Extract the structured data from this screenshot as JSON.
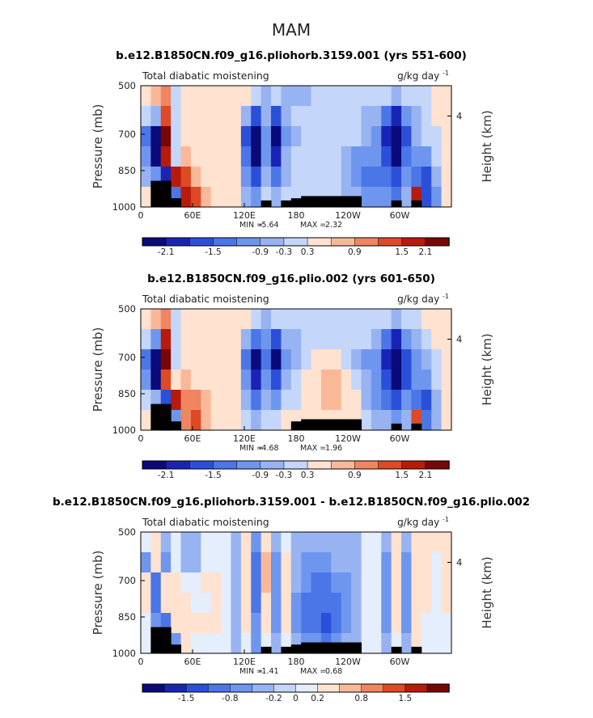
{
  "figure": {
    "main_title": "MAM"
  },
  "colors": {
    "palette_12": [
      "#0a0a7a",
      "#1a24b4",
      "#2b4fd8",
      "#4a76e8",
      "#6f96ee",
      "#97b3f2",
      "#c4d6fa",
      "#ffe2d0",
      "#f9b999",
      "#ef8561",
      "#de4a25",
      "#b81b0b",
      "#7a0505"
    ],
    "palette_diff": [
      "#0a0a7a",
      "#1a24b4",
      "#2b4fd8",
      "#4a76e8",
      "#6f96ee",
      "#97b3f2",
      "#c4d6fa",
      "#e4eefc",
      "#ffe2d0",
      "#f9b999",
      "#ef8561",
      "#de4a25",
      "#b81b0b",
      "#7a0505"
    ],
    "terrain": "#000000"
  },
  "chart_data": [
    {
      "type": "heatmap",
      "title": "b.e12.B1850CN.f09_g16.pliohorb.3159.001 (yrs 551-600)",
      "left_label": "Total diabatic moistening",
      "units": "g/kg day",
      "units_exp": "-1",
      "ylabel": "Pressure (mb)",
      "ylabel_right": "Height (km)",
      "yticks": [
        "500",
        "700",
        "850",
        "1000"
      ],
      "ytick_values": [
        500,
        700,
        850,
        1000
      ],
      "yticks_right": [
        "4"
      ],
      "xticks": [
        "0",
        "60E",
        "120E",
        "180",
        "120W",
        "60W"
      ],
      "xtick_values": [
        0,
        60,
        120,
        180,
        240,
        300
      ],
      "xlim": [
        0,
        360
      ],
      "ylim": [
        1000,
        500
      ],
      "min_label": "MIN =",
      "min_value": "-5.64",
      "max_label": "MAX =",
      "max_value": "2.32",
      "colorbar_labels": [
        "-2.1",
        "-1.5",
        "-0.9",
        "-0.3",
        "0.3",
        "0.9",
        "1.5",
        "2.1"
      ],
      "colorbar_levels": [
        -2.4,
        -2.1,
        -1.8,
        -1.5,
        -1.2,
        -0.9,
        -0.6,
        -0.3,
        0.3,
        0.6,
        0.9,
        1.2,
        1.5,
        1.8,
        2.1,
        2.4
      ],
      "field": [
        [
          0.3,
          0.5,
          0.9,
          -0.3,
          0.3,
          0.3,
          0.3,
          0.3,
          0.3,
          0.3,
          0.3,
          -0.3,
          -0.6,
          -0.3,
          -0.6,
          -0.6,
          -0.6,
          -0.3,
          -0.3,
          -0.3,
          -0.3,
          -0.3,
          -0.3,
          -0.3,
          -0.3,
          -0.6,
          -0.3,
          -0.3,
          -0.3,
          0.3,
          0.3
        ],
        [
          -0.3,
          -0.6,
          1.2,
          -0.3,
          0.3,
          0.3,
          0.3,
          0.3,
          0.3,
          0.3,
          -0.6,
          -1.5,
          -0.6,
          -1.5,
          -0.6,
          -0.3,
          -0.3,
          -0.3,
          -0.3,
          -0.3,
          -0.3,
          -0.3,
          -0.6,
          -0.6,
          -1.2,
          -1.8,
          -0.9,
          -0.6,
          -0.3,
          0.3,
          0.3
        ],
        [
          -1.2,
          -2.4,
          1.8,
          -0.3,
          0.3,
          0.3,
          0.3,
          0.3,
          0.3,
          0.3,
          -1.5,
          -2.4,
          -0.9,
          -2.1,
          -0.9,
          -0.6,
          -0.3,
          -0.3,
          -0.3,
          -0.3,
          -0.3,
          -0.3,
          -0.6,
          -0.9,
          -1.8,
          -2.4,
          -1.5,
          -0.6,
          -0.3,
          -0.3,
          0.3
        ],
        [
          -0.9,
          -2.1,
          1.5,
          -0.3,
          0.6,
          0.3,
          0.3,
          0.3,
          0.3,
          0.3,
          -1.2,
          -2.1,
          -0.9,
          -1.8,
          -0.6,
          -0.3,
          -0.3,
          -0.3,
          -0.3,
          -0.3,
          -0.6,
          -0.9,
          -0.9,
          -0.9,
          -1.5,
          -2.1,
          -1.2,
          -0.9,
          -0.9,
          -0.3,
          0.3
        ],
        [
          -0.6,
          -0.9,
          -1.8,
          1.5,
          1.2,
          0.6,
          0.3,
          0.3,
          0.3,
          0.3,
          -0.9,
          -1.5,
          -0.6,
          -1.2,
          -0.6,
          -0.3,
          -0.3,
          -0.3,
          -0.3,
          -0.3,
          -0.6,
          -0.9,
          -1.2,
          -1.2,
          -1.2,
          -1.5,
          -0.9,
          -1.2,
          -1.5,
          -0.6,
          0.3
        ],
        [
          0.3,
          0.9,
          -2.4,
          -1.2,
          1.5,
          1.2,
          0.6,
          0.3,
          0.3,
          0.3,
          -0.6,
          -0.9,
          -0.3,
          -0.6,
          -0.3,
          -0.3,
          -0.3,
          -0.3,
          -0.3,
          -0.3,
          -0.6,
          -0.6,
          -0.9,
          -0.9,
          -0.9,
          -1.2,
          -0.6,
          1.5,
          -1.5,
          -0.9,
          0.3
        ]
      ],
      "terrain": [
        0,
        24,
        24,
        8,
        0,
        0,
        0,
        0,
        0,
        0,
        0,
        0,
        6,
        0,
        6,
        8,
        10,
        10,
        10,
        10,
        10,
        10,
        0,
        0,
        0,
        6,
        0,
        6,
        0,
        0,
        0
      ]
    },
    {
      "type": "heatmap",
      "title": "b.e12.B1850CN.f09_g16.plio.002 (yrs 601-650)",
      "left_label": "Total diabatic moistening",
      "units": "g/kg day",
      "units_exp": "-1",
      "ylabel": "Pressure (mb)",
      "ylabel_right": "Height (km)",
      "yticks": [
        "500",
        "700",
        "850",
        "1000"
      ],
      "ytick_values": [
        500,
        700,
        850,
        1000
      ],
      "yticks_right": [
        "4"
      ],
      "xticks": [
        "0",
        "60E",
        "120E",
        "180",
        "120W",
        "60W"
      ],
      "xtick_values": [
        0,
        60,
        120,
        180,
        240,
        300
      ],
      "xlim": [
        0,
        360
      ],
      "ylim": [
        1000,
        500
      ],
      "min_label": "MIN =",
      "min_value": "-4.68",
      "max_label": "MAX =",
      "max_value": "1.96",
      "colorbar_labels": [
        "-2.1",
        "-1.5",
        "-0.9",
        "-0.3",
        "0.3",
        "0.9",
        "1.5",
        "2.1"
      ],
      "colorbar_levels": [
        -2.4,
        -2.1,
        -1.8,
        -1.5,
        -1.2,
        -0.9,
        -0.6,
        -0.3,
        0.3,
        0.6,
        0.9,
        1.2,
        1.5,
        1.8,
        2.1,
        2.4
      ],
      "field": [
        [
          0.3,
          0.6,
          0.9,
          -0.3,
          0.3,
          0.3,
          0.3,
          0.3,
          0.3,
          0.3,
          0.3,
          -0.3,
          -0.6,
          -0.3,
          -0.3,
          -0.3,
          -0.3,
          -0.3,
          -0.3,
          -0.3,
          -0.3,
          -0.3,
          -0.3,
          -0.3,
          -0.3,
          -0.6,
          -0.3,
          -0.3,
          0.3,
          0.3,
          0.3
        ],
        [
          -0.3,
          -0.9,
          1.5,
          -0.3,
          0.3,
          0.3,
          0.3,
          0.3,
          0.3,
          0.3,
          -0.6,
          -1.2,
          -0.9,
          -1.5,
          -0.6,
          -0.6,
          -0.3,
          -0.3,
          -0.3,
          -0.3,
          -0.3,
          -0.3,
          -0.3,
          -0.6,
          -1.2,
          -1.8,
          -0.9,
          -0.6,
          -0.3,
          0.3,
          0.3
        ],
        [
          -1.2,
          -2.4,
          1.8,
          -0.3,
          0.3,
          0.3,
          0.3,
          0.3,
          0.3,
          0.3,
          -1.2,
          -2.1,
          -1.2,
          -2.1,
          -0.9,
          -0.6,
          -0.3,
          0.3,
          0.3,
          0.3,
          -0.3,
          -0.6,
          -0.9,
          -0.9,
          -1.8,
          -2.4,
          -1.5,
          -0.9,
          -0.6,
          -0.3,
          0.3
        ],
        [
          -0.9,
          -2.1,
          1.2,
          0.3,
          0.6,
          0.3,
          0.3,
          0.3,
          0.3,
          0.3,
          -0.9,
          -1.8,
          -0.9,
          -1.5,
          -0.6,
          -0.3,
          0.3,
          0.3,
          0.6,
          0.6,
          0.3,
          -0.3,
          -0.6,
          -0.9,
          -1.5,
          -2.1,
          -1.5,
          -0.9,
          -0.9,
          -0.3,
          0.3
        ],
        [
          -0.3,
          -0.6,
          -1.5,
          1.5,
          0.9,
          0.9,
          0.6,
          0.3,
          0.3,
          0.3,
          -0.6,
          -1.2,
          -0.6,
          -0.9,
          -0.3,
          -0.3,
          0.3,
          0.3,
          0.6,
          0.6,
          0.3,
          0.3,
          -0.6,
          -0.9,
          -1.2,
          -1.5,
          -0.9,
          -1.2,
          -1.5,
          -0.6,
          0.3
        ],
        [
          0.3,
          0.6,
          -2.1,
          -0.9,
          0.9,
          1.2,
          0.6,
          0.3,
          0.3,
          0.3,
          -0.3,
          -0.6,
          -0.3,
          -0.3,
          0.3,
          0.3,
          0.3,
          0.3,
          0.3,
          0.3,
          0.3,
          0.3,
          -0.3,
          -0.6,
          -0.6,
          -0.9,
          -0.6,
          1.2,
          -1.2,
          -0.6,
          0.3
        ]
      ],
      "terrain": [
        0,
        24,
        24,
        8,
        0,
        0,
        0,
        0,
        0,
        0,
        0,
        0,
        0,
        0,
        0,
        8,
        10,
        10,
        10,
        10,
        10,
        10,
        0,
        0,
        0,
        6,
        0,
        6,
        0,
        0,
        0
      ]
    },
    {
      "type": "heatmap",
      "title": "b.e12.B1850CN.f09_g16.pliohorb.3159.001 - b.e12.B1850CN.f09_g16.plio.002",
      "left_label": "Total diabatic moistening",
      "units": "g/kg day",
      "units_exp": "-1",
      "ylabel": "Pressure (mb)",
      "ylabel_right": "Height (km)",
      "yticks": [
        "500",
        "700",
        "850",
        "1000"
      ],
      "ytick_values": [
        500,
        700,
        850,
        1000
      ],
      "yticks_right": [
        "4"
      ],
      "xticks": [
        "0",
        "60E",
        "120E",
        "180",
        "120W",
        "60W"
      ],
      "xtick_values": [
        0,
        60,
        120,
        180,
        240,
        300
      ],
      "xlim": [
        0,
        360
      ],
      "ylim": [
        1000,
        500
      ],
      "min_label": "MIN =",
      "min_value": "-1.41",
      "max_label": "MAX =",
      "max_value": "0.68",
      "colorbar_labels": [
        "-1.5",
        "-0.8",
        "-0.2",
        "0",
        "0.2",
        "0.8",
        "1.5"
      ],
      "colorbar_levels": [
        -2.0,
        -1.5,
        -1.2,
        -0.8,
        -0.5,
        -0.2,
        -0.1,
        0,
        0.1,
        0.2,
        0.5,
        0.8,
        1.2,
        1.5,
        2.0
      ],
      "field": [
        [
          0.1,
          0.2,
          -0.1,
          0.1,
          -0.1,
          -0.1,
          0.1,
          0.1,
          0.1,
          -0.1,
          0.2,
          -0.2,
          0.2,
          -0.1,
          0.1,
          -0.1,
          -0.1,
          -0.1,
          -0.1,
          -0.1,
          -0.1,
          -0.1,
          0.1,
          0.1,
          -0.1,
          0.2,
          -0.1,
          0.2,
          0.2,
          0.2,
          0.2
        ],
        [
          -0.2,
          0.2,
          -0.2,
          0.1,
          -0.1,
          -0.1,
          0.1,
          0.1,
          0.1,
          -0.1,
          0.2,
          -0.5,
          0.5,
          -0.2,
          0.2,
          -0.1,
          -0.2,
          -0.2,
          -0.2,
          -0.1,
          -0.1,
          -0.1,
          0.1,
          0.1,
          -0.2,
          0.2,
          -0.2,
          0.2,
          0.2,
          0.1,
          0.2
        ],
        [
          0.2,
          -0.5,
          0.2,
          0.2,
          0.1,
          0.1,
          0.2,
          0.2,
          0.1,
          -0.1,
          0.2,
          -0.5,
          0.5,
          -0.2,
          0.2,
          -0.1,
          -0.2,
          -0.5,
          -0.5,
          -0.2,
          -0.2,
          -0.1,
          0.1,
          0.1,
          -0.2,
          0.2,
          -0.2,
          0.2,
          0.2,
          0.1,
          0.2
        ],
        [
          0.2,
          -0.5,
          0.2,
          0.2,
          0.2,
          0.1,
          0.1,
          0.2,
          0.1,
          -0.1,
          0.2,
          -0.5,
          0.2,
          -0.2,
          0.2,
          -0.2,
          -0.5,
          -0.5,
          -0.5,
          -0.5,
          -0.2,
          -0.1,
          0.1,
          0.1,
          -0.2,
          0.2,
          -0.2,
          0.2,
          0.2,
          0.1,
          0.2
        ],
        [
          0.1,
          -0.2,
          -0.5,
          0.2,
          0.2,
          0.2,
          0.2,
          0.2,
          0.1,
          -0.1,
          0.2,
          -0.2,
          0.2,
          -0.2,
          0.2,
          -0.2,
          -0.5,
          -0.5,
          -0.8,
          -0.5,
          -0.2,
          -0.1,
          0.1,
          0.1,
          -0.2,
          0.2,
          -0.2,
          0.2,
          0.1,
          0.1,
          0.1
        ],
        [
          0.1,
          0.2,
          -0.5,
          -0.2,
          0.2,
          0.1,
          0.1,
          0.1,
          0.1,
          -0.1,
          0.1,
          -0.2,
          0.1,
          -0.1,
          0.1,
          -0.1,
          -0.2,
          -0.2,
          -0.5,
          -0.2,
          -0.1,
          -0.1,
          0.1,
          0.1,
          -0.1,
          0.1,
          -0.1,
          0.2,
          0.1,
          0.1,
          0.1
        ]
      ],
      "terrain": [
        0,
        24,
        24,
        8,
        0,
        0,
        0,
        0,
        0,
        0,
        0,
        0,
        6,
        0,
        6,
        8,
        10,
        10,
        10,
        10,
        10,
        10,
        0,
        0,
        0,
        6,
        0,
        6,
        0,
        0,
        0
      ]
    }
  ]
}
